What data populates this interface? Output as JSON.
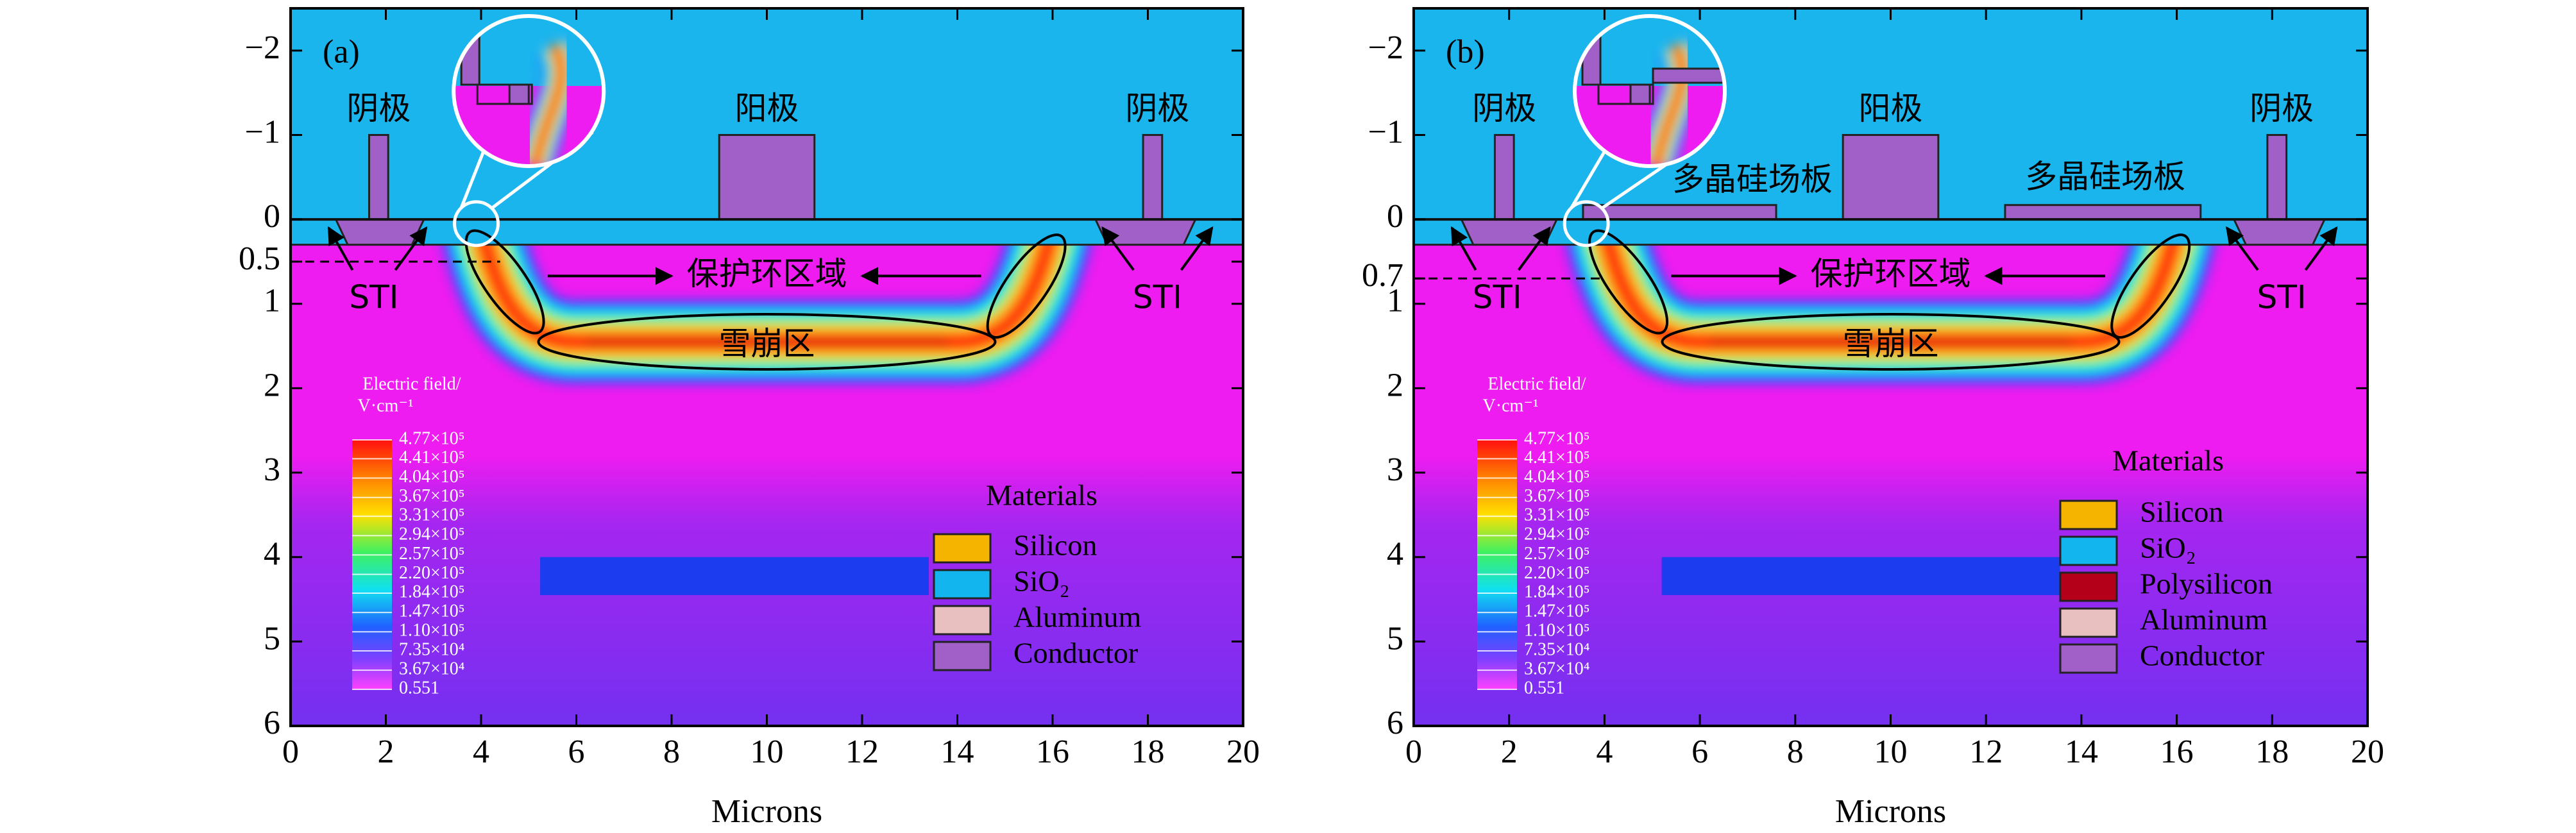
{
  "chart_data": [
    {
      "type": "device-map",
      "panel_label": "(a)",
      "x_label": "Microns",
      "xlim": [
        0,
        20
      ],
      "xticks": [
        0,
        2,
        4,
        6,
        8,
        10,
        12,
        14,
        16,
        18,
        20
      ],
      "ylim": [
        6,
        -2.5
      ],
      "yticks": [
        {
          "value": -2,
          "label": "−2"
        },
        {
          "value": -1,
          "label": "−1"
        },
        0,
        0.5,
        1,
        2,
        3,
        4,
        5,
        6
      ],
      "annotations": [
        "阴极",
        "阳极",
        "阴极",
        "STI",
        "STI",
        "保护环区域",
        "雪崩区"
      ],
      "colorbar": {
        "title": [
          "Electric field/",
          "V·cm⁻¹"
        ],
        "clim": [
          0.551,
          477000
        ],
        "ticks": [
          {
            "value": 477000,
            "label": "4.77×10⁵"
          },
          {
            "value": 441000,
            "label": "4.41×10⁵"
          },
          {
            "value": 404000,
            "label": "4.04×10⁵"
          },
          {
            "value": 367000,
            "label": "3.67×10⁵"
          },
          {
            "value": 331000,
            "label": "3.31×10⁵"
          },
          {
            "value": 294000,
            "label": "2.94×10⁵"
          },
          {
            "value": 257000,
            "label": "2.57×10⁵"
          },
          {
            "value": 220000,
            "label": "2.20×10⁵"
          },
          {
            "value": 184000,
            "label": "1.84×10⁵"
          },
          {
            "value": 147000,
            "label": "1.47×10⁵"
          },
          {
            "value": 110000,
            "label": "1.10×10⁵"
          },
          {
            "value": 73500,
            "label": "7.35×10⁴"
          },
          {
            "value": 36700,
            "label": "3.67×10⁴"
          },
          0.551
        ]
      },
      "legend": {
        "title": "Materials",
        "entries": [
          {
            "name": "Silicon",
            "color": "#f5b400"
          },
          {
            "name": "SiO₂",
            "color": "#13b5ef"
          },
          {
            "name": "Aluminum",
            "color": "#e8c0c0"
          },
          {
            "name": "Conductor",
            "color": "#a060c8"
          }
        ]
      }
    },
    {
      "type": "device-map",
      "panel_label": "(b)",
      "x_label": "Microns",
      "xlim": [
        0,
        20
      ],
      "xticks": [
        0,
        2,
        4,
        6,
        8,
        10,
        12,
        14,
        16,
        18,
        20
      ],
      "ylim": [
        6,
        -2.5
      ],
      "yticks": [
        {
          "value": -2,
          "label": "−2"
        },
        {
          "value": -1,
          "label": "−1"
        },
        0,
        0.7,
        1,
        2,
        3,
        4,
        5,
        6
      ],
      "annotations": [
        "阴极",
        "阳极",
        "阴极",
        "STI",
        "STI",
        "保护环区域",
        "雪崩区",
        "多晶硅场板",
        "多晶硅场板"
      ],
      "colorbar": {
        "title": [
          "Electric field/",
          "V·cm⁻¹"
        ],
        "clim": [
          0.551,
          477000
        ],
        "ticks": [
          {
            "value": 477000,
            "label": "4.77×10⁵"
          },
          {
            "value": 441000,
            "label": "4.41×10⁵"
          },
          {
            "value": 404000,
            "label": "4.04×10⁵"
          },
          {
            "value": 367000,
            "label": "3.67×10⁵"
          },
          {
            "value": 331000,
            "label": "3.31×10⁵"
          },
          {
            "value": 294000,
            "label": "2.94×10⁵"
          },
          {
            "value": 257000,
            "label": "2.57×10⁵"
          },
          {
            "value": 220000,
            "label": "2.20×10⁵"
          },
          {
            "value": 184000,
            "label": "1.84×10⁵"
          },
          {
            "value": 147000,
            "label": "1.47×10⁵"
          },
          {
            "value": 110000,
            "label": "1.10×10⁵"
          },
          {
            "value": 73500,
            "label": "7.35×10⁴"
          },
          {
            "value": 36700,
            "label": "3.67×10⁴"
          },
          0.551
        ]
      },
      "legend": {
        "title": "Materials",
        "entries": [
          {
            "name": "Silicon",
            "color": "#f5b400"
          },
          {
            "name": "SiO₂",
            "color": "#13b5ef"
          },
          {
            "name": "Polysilicon",
            "color": "#b5001a"
          },
          {
            "name": "Aluminum",
            "color": "#e8c0c0"
          },
          {
            "name": "Conductor",
            "color": "#a060c8"
          }
        ]
      }
    }
  ]
}
